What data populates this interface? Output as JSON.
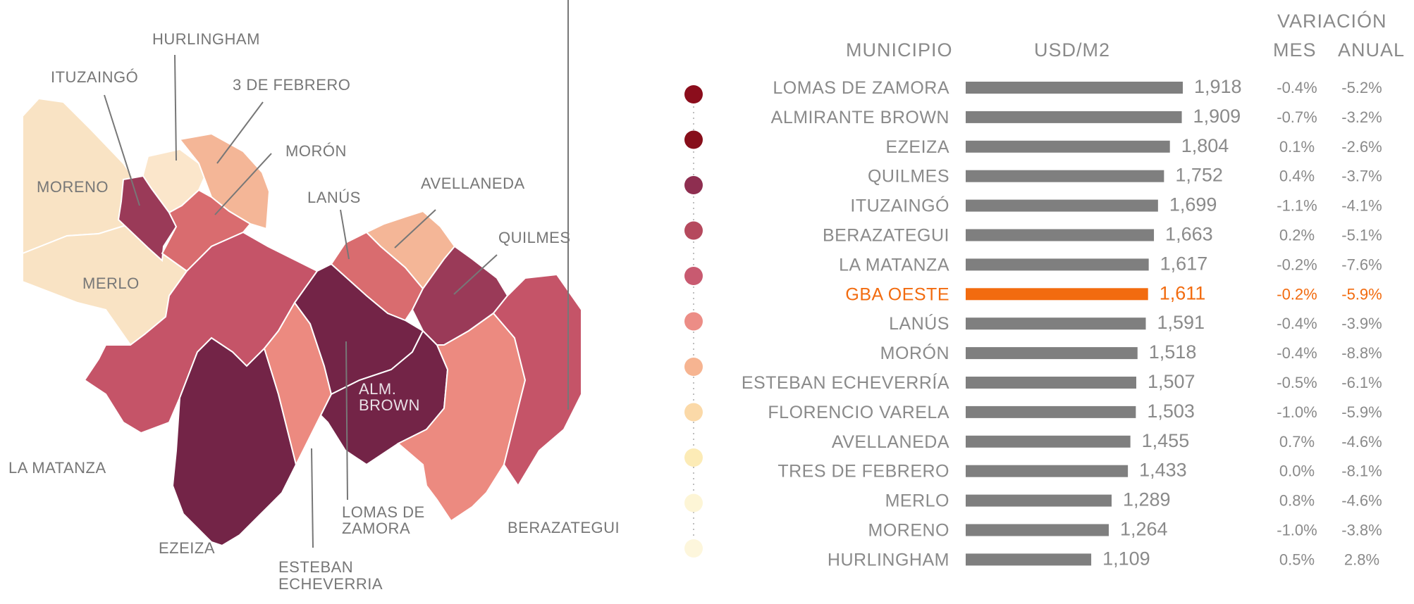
{
  "map": {
    "labels": {
      "hurlingham": "HURLINGHAM",
      "ituzaingo": "ITUZAINGÓ",
      "tres_de_febrero": "3 DE FEBRERO",
      "moron": "MORÓN",
      "moreno": "MORENO",
      "lanus": "LANÚS",
      "avellaneda": "AVELLANEDA",
      "quilmes": "QUILMES",
      "merlo": "MERLO",
      "alm_brown_1": "ALM.",
      "alm_brown_2": "BROWN",
      "la_matanza": "LA MATANZA",
      "lomas_1": "LOMAS DE",
      "lomas_2": "ZAMORA",
      "berazategui": "BERAZATEGUI",
      "ezeiza": "EZEIZA",
      "esteban_1": "ESTEBAN",
      "esteban_2": "ECHEVERRIA"
    },
    "region_colors": {
      "moreno": "#f9e3c4",
      "merlo": "#f9e3c4",
      "hurlingham": "#fbe6cb",
      "tres_de_febrero": "#f4b697",
      "ituzaingo": "#9a3a58",
      "moron": "#d96c6f",
      "la_matanza": "#c55468",
      "ezeiza": "#732447",
      "esteban_echeverria": "#ec8a80",
      "lomas_de_zamora": "#732447",
      "alm_brown": "#732447",
      "lanus": "#d96c6f",
      "avellaneda": "#f4b697",
      "quilmes": "#9a3a58",
      "florencio_varela": "#ec8a80",
      "berazategui": "#c55468"
    }
  },
  "table": {
    "headers": {
      "municipio": "MUNICIPIO",
      "usd": "USD/M2",
      "variacion": "VARIACIÓN",
      "mes": "MES",
      "anual": "ANUAL"
    },
    "legend_colors": [
      "#8b0d1c",
      "#870e1a",
      "#8e2e50",
      "#b5495d",
      "#c85a70",
      "#ec8d86",
      "#f6b491",
      "#fbd9a8",
      "#fcebb6",
      "#fdf5d6",
      "#fdf6dc"
    ],
    "bar_color": "#7f7f7f",
    "highlight_color": "#f26b0f"
  },
  "chart_data": {
    "type": "bar",
    "orientation": "horizontal",
    "xlabel": "USD/M2",
    "categories": [
      "LOMAS DE ZAMORA",
      "ALMIRANTE BROWN",
      "EZEIZA",
      "QUILMES",
      "ITUZAINGÓ",
      "BERAZATEGUI",
      "LA MATANZA",
      "GBA OESTE",
      "LANÚS",
      "MORÓN",
      "ESTEBAN ECHEVERRÍA",
      "FLORENCIO VARELA",
      "AVELLANEDA",
      "TRES DE FEBRERO",
      "MERLO",
      "MORENO",
      "HURLINGHAM"
    ],
    "values": [
      1918,
      1909,
      1804,
      1752,
      1699,
      1663,
      1617,
      1611,
      1591,
      1518,
      1507,
      1503,
      1455,
      1433,
      1289,
      1264,
      1109
    ],
    "value_labels": [
      "1,918",
      "1,909",
      "1,804",
      "1,752",
      "1,699",
      "1,663",
      "1,617",
      "1,611",
      "1,591",
      "1,518",
      "1,507",
      "1,503",
      "1,455",
      "1,433",
      "1,289",
      "1,264",
      "1,109"
    ],
    "variacion_mes": [
      "-0.4%",
      "-0.7%",
      "0.1%",
      "0.4%",
      "-1.1%",
      "0.2%",
      "-0.2%",
      "-0.2%",
      "-0.4%",
      "-0.4%",
      "-0.5%",
      "-1.0%",
      "0.7%",
      "0.0%",
      "0.8%",
      "-1.0%",
      "0.5%"
    ],
    "variacion_anual": [
      "-5.2%",
      "-3.2%",
      "-2.6%",
      "-3.7%",
      "-4.1%",
      "-5.1%",
      "-7.6%",
      "-5.9%",
      "-3.9%",
      "-8.8%",
      "-6.1%",
      "-5.9%",
      "-4.6%",
      "-8.1%",
      "-4.6%",
      "-3.8%",
      "2.8%"
    ],
    "highlight": "GBA OESTE"
  }
}
